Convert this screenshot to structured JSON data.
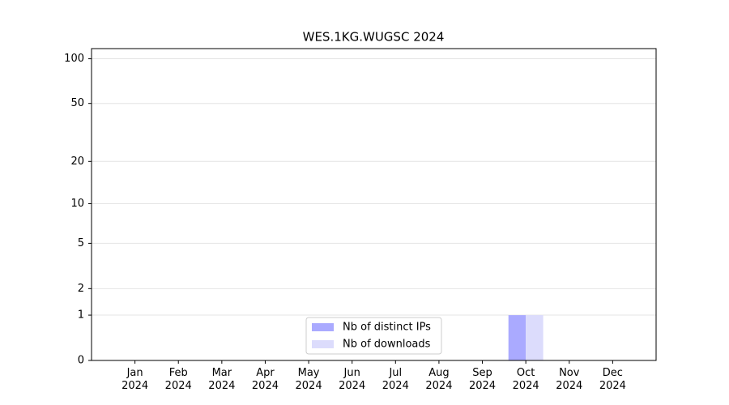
{
  "chart_data": {
    "type": "bar",
    "title": "WES.1KG.WUGSC 2024",
    "categories": [
      "Jan 2024",
      "Feb 2024",
      "Mar 2024",
      "Apr 2024",
      "May 2024",
      "Jun 2024",
      "Jul 2024",
      "Aug 2024",
      "Sep 2024",
      "Oct 2024",
      "Nov 2024",
      "Dec 2024"
    ],
    "series": [
      {
        "name": "Nb of distinct IPs",
        "color": "#aaaaff",
        "values": [
          0,
          0,
          0,
          0,
          0,
          0,
          0,
          0,
          0,
          1,
          0,
          0
        ]
      },
      {
        "name": "Nb of downloads",
        "color": "#dcdcfc",
        "values": [
          0,
          0,
          0,
          0,
          0,
          0,
          0,
          0,
          0,
          1,
          0,
          0
        ]
      }
    ],
    "yscale": "log1p",
    "ylim": [
      0,
      117
    ],
    "yticks": [
      0,
      1,
      2,
      5,
      10,
      20,
      50,
      100
    ],
    "grid": true,
    "legend": "lower center"
  }
}
